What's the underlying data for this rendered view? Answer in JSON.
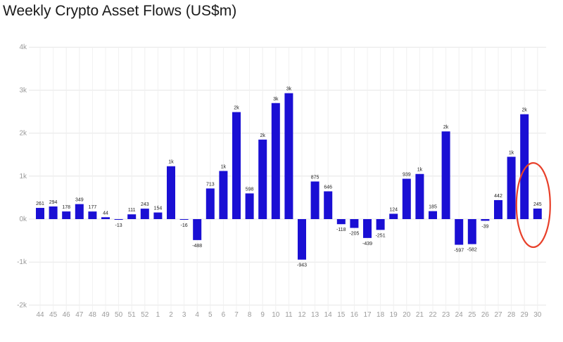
{
  "title": "Weekly Crypto Asset Flows (US$m)",
  "colors": {
    "bar": "#1a0fd4",
    "highlight": "#e8402a",
    "grid": "#e6e6e6"
  },
  "chart_data": {
    "type": "bar",
    "title": "Weekly Crypto Asset Flows (US$m)",
    "categories": [
      "44",
      "45",
      "46",
      "47",
      "48",
      "49",
      "50",
      "51",
      "52",
      "1",
      "2",
      "3",
      "4",
      "5",
      "6",
      "7",
      "8",
      "9",
      "10",
      "11",
      "12",
      "13",
      "14",
      "15",
      "16",
      "17",
      "18",
      "19",
      "20",
      "21",
      "22",
      "23",
      "24",
      "25",
      "26",
      "27",
      "28",
      "29",
      "30"
    ],
    "values": [
      261,
      294,
      178,
      349,
      177,
      44,
      -13,
      111,
      243,
      154,
      1230,
      -16,
      -488,
      713,
      1120,
      2490,
      598,
      1850,
      2700,
      2930,
      -943,
      875,
      646,
      -118,
      -205,
      -439,
      -251,
      124,
      939,
      1050,
      185,
      2040,
      -597,
      -582,
      -39,
      442,
      1450,
      2440,
      245
    ],
    "data_labels": [
      "261",
      "294",
      "178",
      "349",
      "177",
      "44",
      "-13",
      "111",
      "243",
      "154",
      "1k",
      "-16",
      "-488",
      "713",
      "1k",
      "2k",
      "598",
      "2k",
      "3k",
      "3k",
      "-943",
      "875",
      "646",
      "-118",
      "-205",
      "-439",
      "-251",
      "124",
      "939",
      "1k",
      "185",
      "2k",
      "-597",
      "-582",
      "-39",
      "442",
      "1k",
      "2k",
      "245"
    ],
    "y_ticks": [
      -2000,
      -1000,
      0,
      1000,
      2000,
      3000,
      4000
    ],
    "y_tick_labels": [
      "-2k",
      "-1k",
      "0k",
      "1k",
      "2k",
      "3k",
      "4k"
    ],
    "ylim": [
      -2000,
      4000
    ],
    "grid": true,
    "highlight_category": "30",
    "xlabel": "",
    "ylabel": ""
  }
}
